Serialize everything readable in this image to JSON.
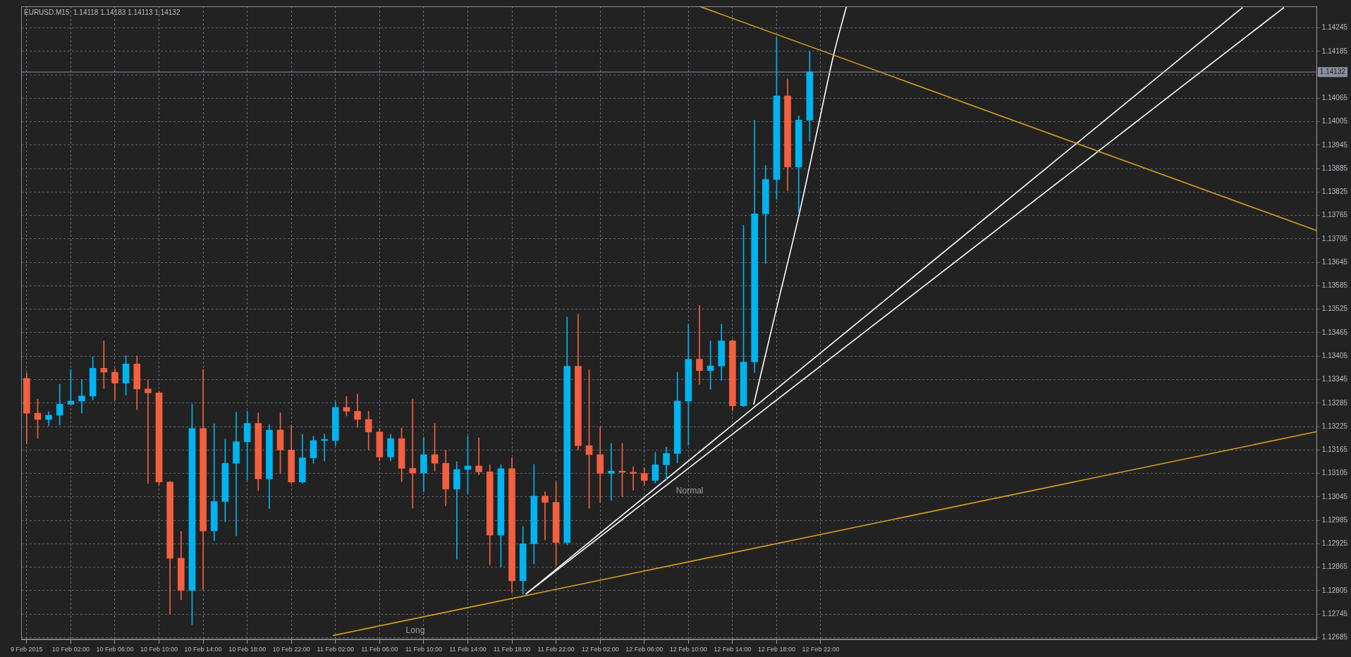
{
  "chart_data": {
    "type": "candlestick",
    "title": "EURUSD.M15  1.14118 1.14183 1.14113 1.14132",
    "x": [
      "2015-02-09T22:00",
      "2015-02-09T23:00",
      "2015-02-10T00:00",
      "2015-02-10T01:00",
      "2015-02-10T02:00",
      "2015-02-10T03:00",
      "2015-02-10T04:00",
      "2015-02-10T05:00",
      "2015-02-10T06:00",
      "2015-02-10T07:00",
      "2015-02-10T08:00",
      "2015-02-10T09:00",
      "2015-02-10T10:00",
      "2015-02-10T11:00",
      "2015-02-10T12:00",
      "2015-02-10T13:00",
      "2015-02-10T14:00",
      "2015-02-10T15:00",
      "2015-02-10T16:00",
      "2015-02-10T17:00",
      "2015-02-10T18:00",
      "2015-02-10T19:00",
      "2015-02-10T20:00",
      "2015-02-10T21:00",
      "2015-02-10T22:00",
      "2015-02-10T23:00",
      "2015-02-11T00:00",
      "2015-02-11T01:00",
      "2015-02-11T02:00",
      "2015-02-11T03:00",
      "2015-02-11T04:00",
      "2015-02-11T05:00",
      "2015-02-11T06:00",
      "2015-02-11T07:00",
      "2015-02-11T08:00",
      "2015-02-11T09:00",
      "2015-02-11T10:00",
      "2015-02-11T11:00",
      "2015-02-11T12:00",
      "2015-02-11T13:00",
      "2015-02-11T14:00",
      "2015-02-11T15:00",
      "2015-02-11T16:00",
      "2015-02-11T17:00",
      "2015-02-11T18:00",
      "2015-02-11T19:00",
      "2015-02-11T20:00",
      "2015-02-11T21:00",
      "2015-02-11T22:00",
      "2015-02-11T23:00",
      "2015-02-12T00:00",
      "2015-02-12T01:00",
      "2015-02-12T02:00",
      "2015-02-12T03:00",
      "2015-02-12T04:00",
      "2015-02-12T05:00",
      "2015-02-12T06:00",
      "2015-02-12T07:00",
      "2015-02-12T08:00",
      "2015-02-12T09:00",
      "2015-02-12T10:00",
      "2015-02-12T11:00",
      "2015-02-12T12:00",
      "2015-02-12T13:00",
      "2015-02-12T14:00",
      "2015-02-12T15:00",
      "2015-02-12T16:00",
      "2015-02-12T17:00",
      "2015-02-12T18:00",
      "2015-02-12T19:00",
      "2015-02-12T20:00",
      "2015-02-12T21:00"
    ],
    "ohlc": [
      [
        1.13348,
        1.13362,
        1.1318,
        1.13259
      ],
      [
        1.13259,
        1.13295,
        1.13195,
        1.13243
      ],
      [
        1.13243,
        1.13263,
        1.13227,
        1.13254
      ],
      [
        1.13254,
        1.13333,
        1.13229,
        1.13282
      ],
      [
        1.13282,
        1.13371,
        1.13281,
        1.1329
      ],
      [
        1.1329,
        1.13344,
        1.13259,
        1.13303
      ],
      [
        1.13303,
        1.13403,
        1.13293,
        1.13374
      ],
      [
        1.13374,
        1.13444,
        1.13322,
        1.13364
      ],
      [
        1.13364,
        1.13373,
        1.13293,
        1.13336
      ],
      [
        1.13336,
        1.13406,
        1.13305,
        1.13385
      ],
      [
        1.13385,
        1.13406,
        1.13268,
        1.13321
      ],
      [
        1.13321,
        1.13344,
        1.13079,
        1.13311
      ],
      [
        1.13311,
        1.13315,
        1.13075,
        1.13083
      ],
      [
        1.13083,
        1.13085,
        1.12746,
        1.12888
      ],
      [
        1.12888,
        1.12957,
        1.12782,
        1.12806
      ],
      [
        1.12806,
        1.13282,
        1.12718,
        1.1322
      ],
      [
        1.1322,
        1.13371,
        1.12807,
        1.12958
      ],
      [
        1.12958,
        1.13232,
        1.12933,
        1.13033
      ],
      [
        1.13033,
        1.13193,
        1.12981,
        1.13131
      ],
      [
        1.13131,
        1.13262,
        1.12945,
        1.13186
      ],
      [
        1.13186,
        1.13264,
        1.13088,
        1.13233
      ],
      [
        1.13233,
        1.1326,
        1.13061,
        1.13091
      ],
      [
        1.13091,
        1.1323,
        1.13015,
        1.13216
      ],
      [
        1.13216,
        1.1326,
        1.13104,
        1.13165
      ],
      [
        1.13165,
        1.13229,
        1.13079,
        1.13083
      ],
      [
        1.13083,
        1.13205,
        1.13079,
        1.13145
      ],
      [
        1.13145,
        1.132,
        1.13131,
        1.13189
      ],
      [
        1.13189,
        1.13206,
        1.13137,
        1.13192
      ],
      [
        1.13189,
        1.13288,
        1.13176,
        1.13274
      ],
      [
        1.13274,
        1.13302,
        1.13252,
        1.13264
      ],
      [
        1.13264,
        1.13308,
        1.13223,
        1.13243
      ],
      [
        1.13243,
        1.13264,
        1.13165,
        1.13211
      ],
      [
        1.13211,
        1.1322,
        1.13137,
        1.13147
      ],
      [
        1.13147,
        1.13205,
        1.13137,
        1.13194
      ],
      [
        1.13194,
        1.13221,
        1.13084,
        1.13118
      ],
      [
        1.13118,
        1.13295,
        1.13016,
        1.13106
      ],
      [
        1.13106,
        1.13198,
        1.13058,
        1.13153
      ],
      [
        1.13153,
        1.13233,
        1.13111,
        1.13131
      ],
      [
        1.13131,
        1.13164,
        1.13022,
        1.13065
      ],
      [
        1.13065,
        1.13135,
        1.12885,
        1.13115
      ],
      [
        1.13115,
        1.132,
        1.13053,
        1.13124
      ],
      [
        1.13124,
        1.13196,
        1.13101,
        1.13109
      ],
      [
        1.13109,
        1.13127,
        1.12871,
        1.12947
      ],
      [
        1.12947,
        1.13127,
        1.12865,
        1.13117
      ],
      [
        1.13117,
        1.13145,
        1.128,
        1.1283
      ],
      [
        1.1283,
        1.12969,
        1.12796,
        1.12925
      ],
      [
        1.12925,
        1.13128,
        1.12873,
        1.13047
      ],
      [
        1.13047,
        1.13058,
        1.12935,
        1.13031
      ],
      [
        1.13031,
        1.13082,
        1.12871,
        1.12928
      ],
      [
        1.12928,
        1.13505,
        1.12922,
        1.13379
      ],
      [
        1.13379,
        1.13512,
        1.13165,
        1.13176
      ],
      [
        1.13176,
        1.1337,
        1.13016,
        1.13153
      ],
      [
        1.13153,
        1.13223,
        1.13031,
        1.13105
      ],
      [
        1.13105,
        1.13182,
        1.13036,
        1.13111
      ],
      [
        1.13111,
        1.13182,
        1.13046,
        1.13108
      ],
      [
        1.13108,
        1.13122,
        1.13062,
        1.13105
      ],
      [
        1.13105,
        1.1312,
        1.13074,
        1.13087
      ],
      [
        1.13087,
        1.13159,
        1.1308,
        1.13127
      ],
      [
        1.13127,
        1.13172,
        1.13087,
        1.13156
      ],
      [
        1.13156,
        1.13364,
        1.13132,
        1.1329
      ],
      [
        1.1329,
        1.13487,
        1.13177,
        1.13397
      ],
      [
        1.13397,
        1.13535,
        1.13333,
        1.13368
      ],
      [
        1.13368,
        1.13444,
        1.1332,
        1.1338
      ],
      [
        1.1338,
        1.13487,
        1.13343,
        1.13444
      ],
      [
        1.13444,
        1.13447,
        1.13265,
        1.13278
      ],
      [
        1.13278,
        1.1374,
        1.13276,
        1.1339
      ],
      [
        1.1339,
        1.14009,
        1.13363,
        1.13769
      ],
      [
        1.13769,
        1.13893,
        1.13642,
        1.13857
      ],
      [
        1.13857,
        1.14221,
        1.13806,
        1.14071
      ],
      [
        1.14071,
        1.14114,
        1.13828,
        1.13889
      ],
      [
        1.13889,
        1.1402,
        1.13773,
        1.14009
      ],
      [
        1.14009,
        1.14185,
        1.13955,
        1.14132
      ]
    ],
    "colors": [
      "#f2603f",
      "#f2603f",
      "#00b4f0",
      "#00b4f0",
      "#00b4f0",
      "#00b4f0",
      "#00b4f0",
      "#f2603f",
      "#f2603f",
      "#00b4f0",
      "#f2603f",
      "#f2603f",
      "#f2603f",
      "#f2603f",
      "#f2603f",
      "#00b4f0",
      "#f2603f",
      "#00b4f0",
      "#00b4f0",
      "#00b4f0",
      "#00b4f0",
      "#f2603f",
      "#00b4f0",
      "#f2603f",
      "#f2603f",
      "#00b4f0",
      "#00b4f0",
      "#00b4f0",
      "#00b4f0",
      "#f2603f",
      "#f2603f",
      "#f2603f",
      "#f2603f",
      "#00b4f0",
      "#f2603f",
      "#f2603f",
      "#00b4f0",
      "#f2603f",
      "#f2603f",
      "#00b4f0",
      "#00b4f0",
      "#f2603f",
      "#f2603f",
      "#00b4f0",
      "#f2603f",
      "#00b4f0",
      "#00b4f0",
      "#f2603f",
      "#f2603f",
      "#00b4f0",
      "#f2603f",
      "#f2603f",
      "#f2603f",
      "#00b4f0",
      "#f2603f",
      "#f2603f",
      "#f2603f",
      "#00b4f0",
      "#00b4f0",
      "#00b4f0",
      "#00b4f0",
      "#f2603f",
      "#00b4f0",
      "#00b4f0",
      "#f2603f",
      "#00b4f0",
      "#00b4f0",
      "#00b4f0",
      "#00b4f0",
      "#f2603f",
      "#00b4f0",
      "#00b4f0"
    ],
    "series": [
      {
        "type": "line",
        "color": "#d9a020",
        "x": [
          "2015-02-12T11:00",
          "2015-02-14T19:00"
        ],
        "values": [
          1.143,
          1.13726
        ]
      },
      {
        "type": "line",
        "color": "#d9a020",
        "x": [
          "2015-02-11T01:45",
          "2015-02-14T19:00"
        ],
        "values": [
          1.1269,
          1.13212
        ]
      },
      {
        "type": "line",
        "color": "#ffffff",
        "x": [
          "2015-02-11T19:15",
          "2015-02-14T16:00"
        ],
        "values": [
          1.12796,
          1.14297
        ]
      },
      {
        "type": "line",
        "color": "#ffffff",
        "x": [
          "2015-02-11T19:15",
          "2015-02-14T12:15"
        ],
        "values": [
          1.12796,
          1.14297
        ]
      },
      {
        "type": "line",
        "color": "#ffffff",
        "x": [
          "2015-02-12T15:55",
          "2015-02-12T17:50",
          "2015-02-12T20:05",
          "2015-02-12T21:50",
          "2015-02-12T23:10",
          "2015-02-13T00:20"
        ],
        "values": [
          1.13281,
          1.13508,
          1.13773,
          1.14002,
          1.14176,
          1.143
        ]
      }
    ],
    "ref_lines": [
      {
        "axis": "y",
        "value": 1.14132,
        "label": "1.14132",
        "color": "#8a919c"
      }
    ],
    "annotations": [
      {
        "text": "Long",
        "x": "2015-02-11T08:00",
        "y": 1.12727
      },
      {
        "text": "Normal",
        "x": "2015-02-12T08:30",
        "y": 1.13085
      }
    ],
    "xlim": [
      "2015-02-09T21:30",
      "2015-02-14T19:00"
    ],
    "xticks": [
      {
        "value": "2015-02-09T22:00",
        "label": "9 Feb 2015"
      },
      {
        "value": "2015-02-10T02:00",
        "label": "10 Feb 02:00"
      },
      {
        "value": "2015-02-10T06:00",
        "label": "10 Feb 06:00"
      },
      {
        "value": "2015-02-10T10:00",
        "label": "10 Feb 10:00"
      },
      {
        "value": "2015-02-10T14:00",
        "label": "10 Feb 14:00"
      },
      {
        "value": "2015-02-10T18:00",
        "label": "10 Feb 18:00"
      },
      {
        "value": "2015-02-10T22:00",
        "label": "10 Feb 22:00"
      },
      {
        "value": "2015-02-11T02:00",
        "label": "11 Feb 02:00"
      },
      {
        "value": "2015-02-11T06:00",
        "label": "11 Feb 06:00"
      },
      {
        "value": "2015-02-11T10:00",
        "label": "11 Feb 10:00"
      },
      {
        "value": "2015-02-11T14:00",
        "label": "11 Feb 14:00"
      },
      {
        "value": "2015-02-11T18:00",
        "label": "11 Feb 18:00"
      },
      {
        "value": "2015-02-11T22:00",
        "label": "11 Feb 22:00"
      },
      {
        "value": "2015-02-12T02:00",
        "label": "12 Feb 02:00"
      },
      {
        "value": "2015-02-12T06:00",
        "label": "12 Feb 06:00"
      },
      {
        "value": "2015-02-12T10:00",
        "label": "12 Feb 10:00"
      },
      {
        "value": "2015-02-12T14:00",
        "label": "12 Feb 14:00"
      },
      {
        "value": "2015-02-12T18:00",
        "label": "12 Feb 18:00"
      },
      {
        "value": "2015-02-12T22:00",
        "label": "12 Feb 22:00"
      }
    ],
    "ylim": [
      1.1268,
      1.143
    ],
    "yticks": [
      1.12685,
      1.12745,
      1.12805,
      1.12865,
      1.12925,
      1.12985,
      1.13045,
      1.13105,
      1.13165,
      1.13225,
      1.13285,
      1.13345,
      1.13405,
      1.13465,
      1.13525,
      1.13585,
      1.13645,
      1.13705,
      1.13765,
      1.13825,
      1.13885,
      1.13945,
      1.14005,
      1.14065,
      {
        "value": 1.14125,
        "label": null
      },
      1.14185,
      1.14245
    ],
    "grid": true,
    "legend": false
  }
}
